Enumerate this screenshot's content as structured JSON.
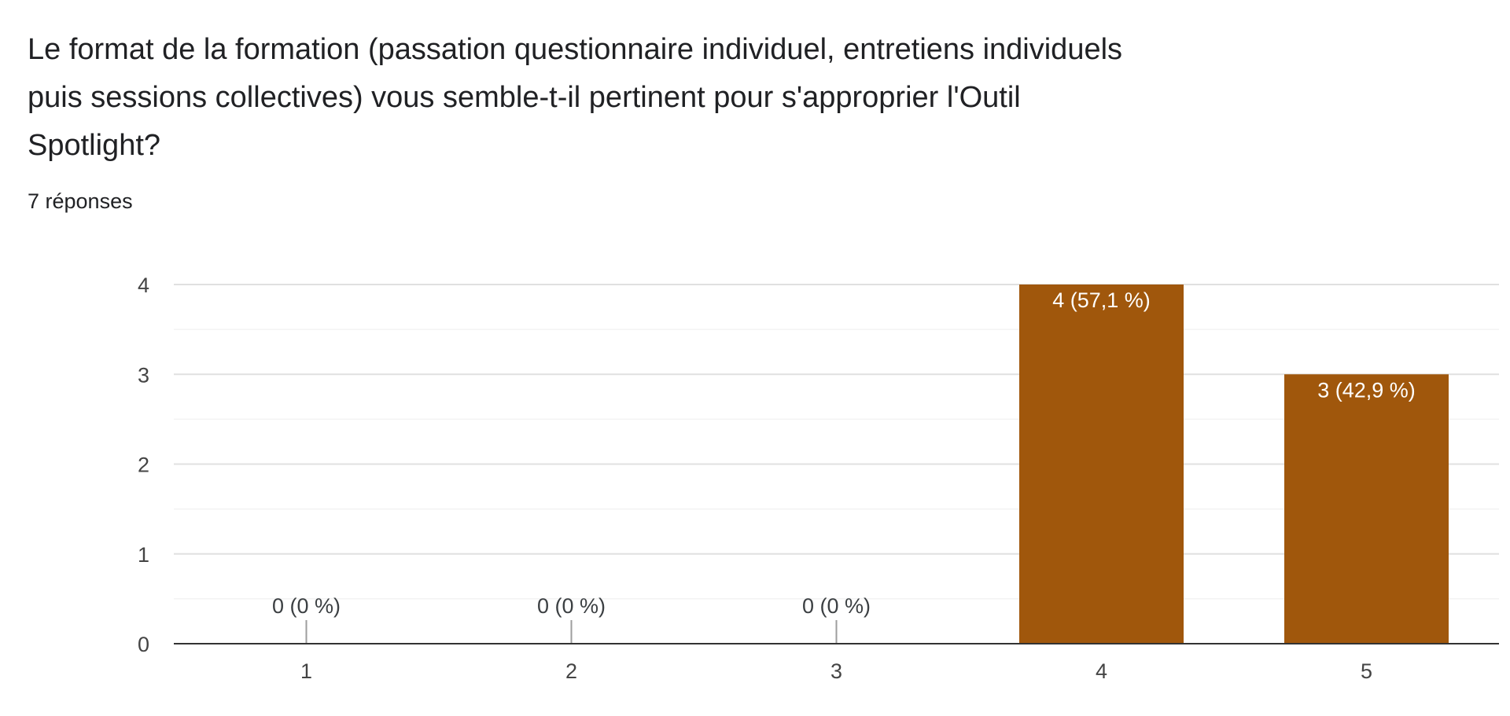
{
  "question": {
    "title": "Le format de la formation (passation questionnaire individuel, entretiens individuels puis sessions collectives) vous semble-t-il pertinent pour s'approprier l'Outil Spotlight?",
    "title_lines": [
      "Le format de la formation (passation questionnaire individuel, entretiens individuels",
      "puis sessions collectives) vous semble-t-il pertinent pour s'approprier l'Outil",
      "Spotlight?"
    ],
    "response_count": "7 réponses"
  },
  "chart_data": {
    "type": "bar",
    "categories": [
      "1",
      "2",
      "3",
      "4",
      "5"
    ],
    "values": [
      0,
      0,
      0,
      4,
      3
    ],
    "data_labels": [
      "0 (0 %)",
      "0 (0 %)",
      "0 (0 %)",
      "4 (57,1 %)",
      "3 (42,9 %)"
    ],
    "ylim": [
      0,
      4
    ],
    "yticks": [
      "0",
      "1",
      "2",
      "3",
      "4"
    ],
    "grid": true,
    "minor_grid": true,
    "bar_color": "#a0570c",
    "label_color_inside": "#ffffff",
    "label_color_outside": "#3c4043"
  }
}
